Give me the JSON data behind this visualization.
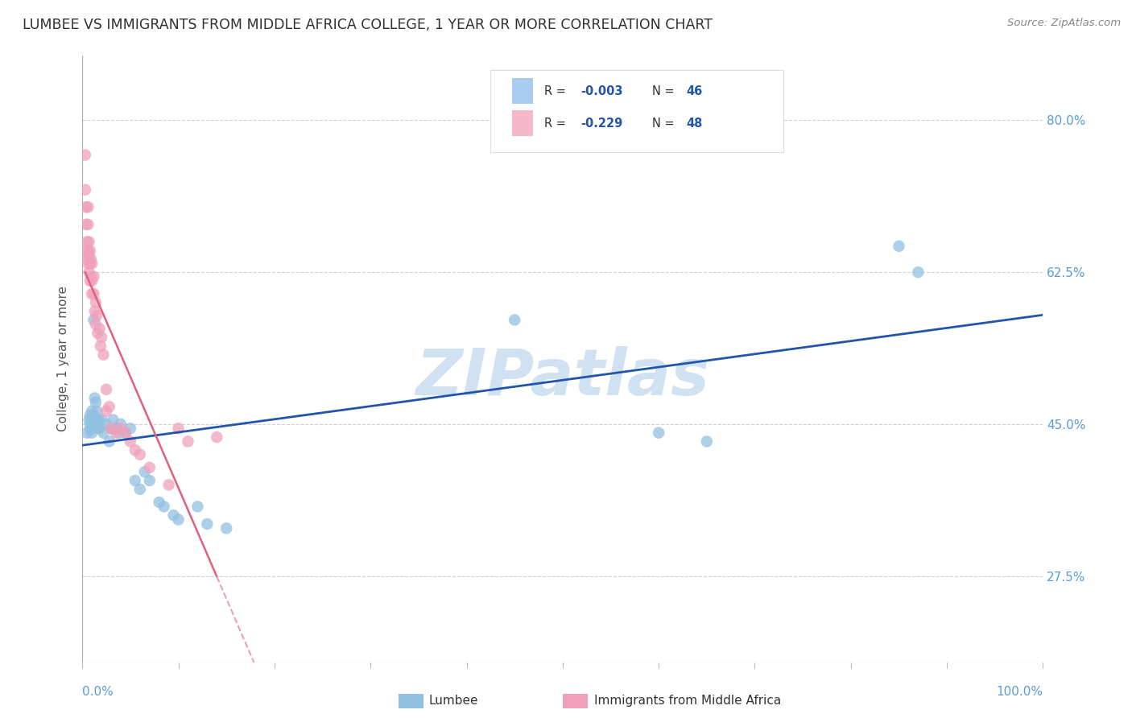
{
  "title": "LUMBEE VS IMMIGRANTS FROM MIDDLE AFRICA COLLEGE, 1 YEAR OR MORE CORRELATION CHART",
  "source_text": "Source: ZipAtlas.com",
  "ylabel": "College, 1 year or more",
  "lumbee_label": "Lumbee",
  "immigrants_label": "Immigrants from Middle Africa",
  "xlim": [
    0.0,
    1.0
  ],
  "ylim": [
    0.175,
    0.875
  ],
  "y_ticks": [
    0.275,
    0.45,
    0.625,
    0.8
  ],
  "y_tick_labels": [
    "27.5%",
    "45.0%",
    "62.5%",
    "80.0%"
  ],
  "x_left_label": "0.0%",
  "x_right_label": "100.0%",
  "lumbee_color": "#92c0e0",
  "immigrants_color": "#f0a0bb",
  "lumbee_line_color": "#2255aa",
  "immigrants_line_color": "#e06080",
  "immigrants_dash_color": "#e8a0b8",
  "legend_box_color": "#aaccee",
  "legend_pink_color": "#f4b8c8",
  "watermark": "ZIPatlas",
  "watermark_color": "#c8ddf0",
  "grid_color": "#cccccc",
  "title_color": "#303030",
  "axis_tick_color": "#5b9bd5",
  "background_color": "#ffffff",
  "legend_r1": "R = -0.003",
  "legend_n1": "N = 46",
  "legend_r2": "R = -0.229",
  "legend_n2": "N = 48",
  "legend_value_color": "#2255aa",
  "lumbee_scatter": [
    [
      0.005,
      0.44
    ],
    [
      0.007,
      0.455
    ],
    [
      0.008,
      0.46
    ],
    [
      0.008,
      0.45
    ],
    [
      0.008,
      0.445
    ],
    [
      0.01,
      0.465
    ],
    [
      0.01,
      0.455
    ],
    [
      0.01,
      0.445
    ],
    [
      0.01,
      0.44
    ],
    [
      0.012,
      0.57
    ],
    [
      0.012,
      0.46
    ],
    [
      0.012,
      0.45
    ],
    [
      0.013,
      0.48
    ],
    [
      0.014,
      0.475
    ],
    [
      0.015,
      0.465
    ],
    [
      0.015,
      0.455
    ],
    [
      0.016,
      0.445
    ],
    [
      0.017,
      0.455
    ],
    [
      0.018,
      0.445
    ],
    [
      0.02,
      0.455
    ],
    [
      0.022,
      0.44
    ],
    [
      0.025,
      0.45
    ],
    [
      0.028,
      0.43
    ],
    [
      0.03,
      0.445
    ],
    [
      0.032,
      0.455
    ],
    [
      0.035,
      0.445
    ],
    [
      0.038,
      0.44
    ],
    [
      0.04,
      0.45
    ],
    [
      0.045,
      0.44
    ],
    [
      0.05,
      0.445
    ],
    [
      0.055,
      0.385
    ],
    [
      0.06,
      0.375
    ],
    [
      0.065,
      0.395
    ],
    [
      0.07,
      0.385
    ],
    [
      0.08,
      0.36
    ],
    [
      0.085,
      0.355
    ],
    [
      0.095,
      0.345
    ],
    [
      0.1,
      0.34
    ],
    [
      0.12,
      0.355
    ],
    [
      0.13,
      0.335
    ],
    [
      0.15,
      0.33
    ],
    [
      0.45,
      0.57
    ],
    [
      0.6,
      0.44
    ],
    [
      0.65,
      0.43
    ],
    [
      0.85,
      0.655
    ],
    [
      0.87,
      0.625
    ]
  ],
  "immigrants_scatter": [
    [
      0.003,
      0.76
    ],
    [
      0.003,
      0.72
    ],
    [
      0.004,
      0.7
    ],
    [
      0.004,
      0.68
    ],
    [
      0.005,
      0.66
    ],
    [
      0.005,
      0.65
    ],
    [
      0.005,
      0.64
    ],
    [
      0.006,
      0.7
    ],
    [
      0.006,
      0.68
    ],
    [
      0.006,
      0.65
    ],
    [
      0.006,
      0.635
    ],
    [
      0.007,
      0.66
    ],
    [
      0.007,
      0.645
    ],
    [
      0.007,
      0.625
    ],
    [
      0.008,
      0.65
    ],
    [
      0.008,
      0.635
    ],
    [
      0.008,
      0.615
    ],
    [
      0.009,
      0.64
    ],
    [
      0.009,
      0.62
    ],
    [
      0.01,
      0.635
    ],
    [
      0.01,
      0.615
    ],
    [
      0.01,
      0.6
    ],
    [
      0.012,
      0.62
    ],
    [
      0.012,
      0.6
    ],
    [
      0.013,
      0.58
    ],
    [
      0.014,
      0.59
    ],
    [
      0.014,
      0.565
    ],
    [
      0.015,
      0.575
    ],
    [
      0.016,
      0.555
    ],
    [
      0.018,
      0.56
    ],
    [
      0.019,
      0.54
    ],
    [
      0.02,
      0.55
    ],
    [
      0.022,
      0.53
    ],
    [
      0.025,
      0.49
    ],
    [
      0.025,
      0.465
    ],
    [
      0.028,
      0.47
    ],
    [
      0.03,
      0.445
    ],
    [
      0.035,
      0.44
    ],
    [
      0.04,
      0.445
    ],
    [
      0.045,
      0.44
    ],
    [
      0.05,
      0.43
    ],
    [
      0.055,
      0.42
    ],
    [
      0.06,
      0.415
    ],
    [
      0.07,
      0.4
    ],
    [
      0.09,
      0.38
    ],
    [
      0.1,
      0.445
    ],
    [
      0.11,
      0.43
    ],
    [
      0.14,
      0.435
    ]
  ]
}
